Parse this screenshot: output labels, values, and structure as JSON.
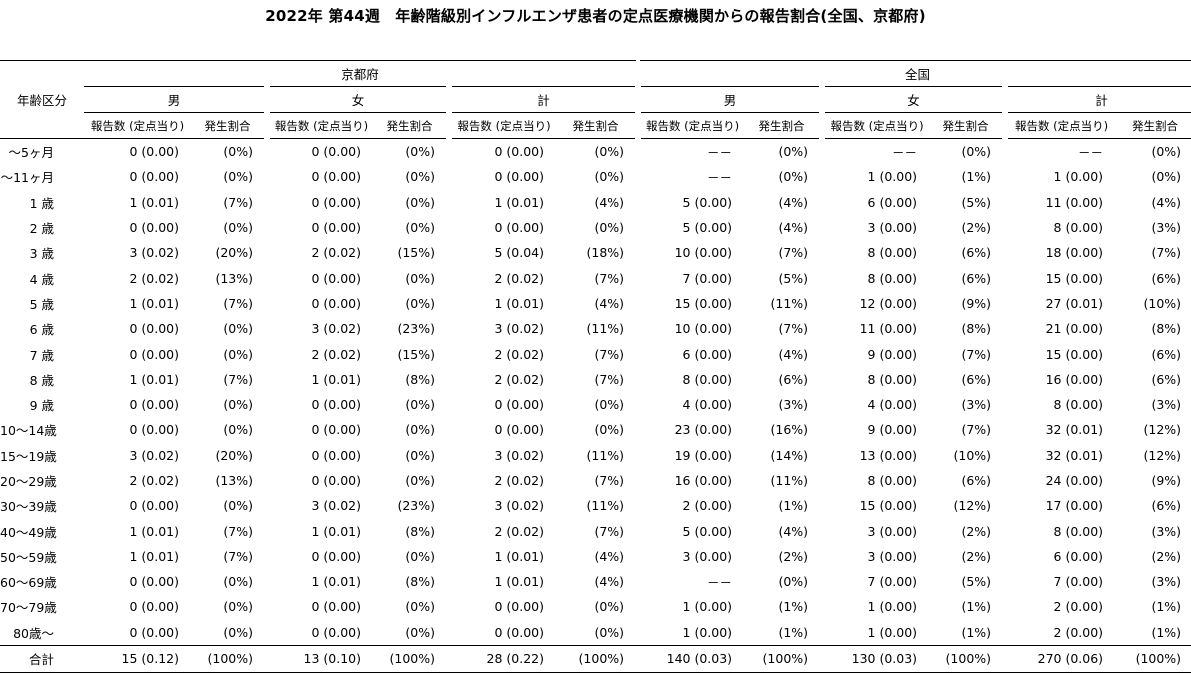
{
  "title": "2022年 第44週　年齢階級別インフルエンザ患者の定点医療機関からの報告割合(全国、京都府)",
  "header": {
    "age_group_label": "年齢区分",
    "region_kyoto": "京都府",
    "region_national": "全国",
    "sex_male": "男",
    "sex_female": "女",
    "sex_total": "計",
    "col_reports": "報告数 (定点当り)",
    "col_rate": "発生割合"
  },
  "rows": [
    {
      "age": "～5ヶ月",
      "k_m": "0 (0.00)",
      "k_m_p": "(0%)",
      "k_f": "0 (0.00)",
      "k_f_p": "(0%)",
      "k_t": "0 (0.00)",
      "k_t_p": "(0%)",
      "n_m": "－－",
      "n_m_p": "(0%)",
      "n_f": "－－",
      "n_f_p": "(0%)",
      "n_t": "－－",
      "n_t_p": "(0%)"
    },
    {
      "age": "～11ヶ月",
      "k_m": "0 (0.00)",
      "k_m_p": "(0%)",
      "k_f": "0 (0.00)",
      "k_f_p": "(0%)",
      "k_t": "0 (0.00)",
      "k_t_p": "(0%)",
      "n_m": "－－",
      "n_m_p": "(0%)",
      "n_f": "1 (0.00)",
      "n_f_p": "(1%)",
      "n_t": "1 (0.00)",
      "n_t_p": "(0%)"
    },
    {
      "age": "1 歳",
      "k_m": "1 (0.01)",
      "k_m_p": "(7%)",
      "k_f": "0 (0.00)",
      "k_f_p": "(0%)",
      "k_t": "1 (0.01)",
      "k_t_p": "(4%)",
      "n_m": "5 (0.00)",
      "n_m_p": "(4%)",
      "n_f": "6 (0.00)",
      "n_f_p": "(5%)",
      "n_t": "11 (0.00)",
      "n_t_p": "(4%)"
    },
    {
      "age": "2 歳",
      "k_m": "0 (0.00)",
      "k_m_p": "(0%)",
      "k_f": "0 (0.00)",
      "k_f_p": "(0%)",
      "k_t": "0 (0.00)",
      "k_t_p": "(0%)",
      "n_m": "5 (0.00)",
      "n_m_p": "(4%)",
      "n_f": "3 (0.00)",
      "n_f_p": "(2%)",
      "n_t": "8 (0.00)",
      "n_t_p": "(3%)"
    },
    {
      "age": "3 歳",
      "k_m": "3 (0.02)",
      "k_m_p": "(20%)",
      "k_f": "2 (0.02)",
      "k_f_p": "(15%)",
      "k_t": "5 (0.04)",
      "k_t_p": "(18%)",
      "n_m": "10 (0.00)",
      "n_m_p": "(7%)",
      "n_f": "8 (0.00)",
      "n_f_p": "(6%)",
      "n_t": "18 (0.00)",
      "n_t_p": "(7%)"
    },
    {
      "age": "4 歳",
      "k_m": "2 (0.02)",
      "k_m_p": "(13%)",
      "k_f": "0 (0.00)",
      "k_f_p": "(0%)",
      "k_t": "2 (0.02)",
      "k_t_p": "(7%)",
      "n_m": "7 (0.00)",
      "n_m_p": "(5%)",
      "n_f": "8 (0.00)",
      "n_f_p": "(6%)",
      "n_t": "15 (0.00)",
      "n_t_p": "(6%)"
    },
    {
      "age": "5 歳",
      "k_m": "1 (0.01)",
      "k_m_p": "(7%)",
      "k_f": "0 (0.00)",
      "k_f_p": "(0%)",
      "k_t": "1 (0.01)",
      "k_t_p": "(4%)",
      "n_m": "15 (0.00)",
      "n_m_p": "(11%)",
      "n_f": "12 (0.00)",
      "n_f_p": "(9%)",
      "n_t": "27 (0.01)",
      "n_t_p": "(10%)"
    },
    {
      "age": "6 歳",
      "k_m": "0 (0.00)",
      "k_m_p": "(0%)",
      "k_f": "3 (0.02)",
      "k_f_p": "(23%)",
      "k_t": "3 (0.02)",
      "k_t_p": "(11%)",
      "n_m": "10 (0.00)",
      "n_m_p": "(7%)",
      "n_f": "11 (0.00)",
      "n_f_p": "(8%)",
      "n_t": "21 (0.00)",
      "n_t_p": "(8%)"
    },
    {
      "age": "7 歳",
      "k_m": "0 (0.00)",
      "k_m_p": "(0%)",
      "k_f": "2 (0.02)",
      "k_f_p": "(15%)",
      "k_t": "2 (0.02)",
      "k_t_p": "(7%)",
      "n_m": "6 (0.00)",
      "n_m_p": "(4%)",
      "n_f": "9 (0.00)",
      "n_f_p": "(7%)",
      "n_t": "15 (0.00)",
      "n_t_p": "(6%)"
    },
    {
      "age": "8 歳",
      "k_m": "1 (0.01)",
      "k_m_p": "(7%)",
      "k_f": "1 (0.01)",
      "k_f_p": "(8%)",
      "k_t": "2 (0.02)",
      "k_t_p": "(7%)",
      "n_m": "8 (0.00)",
      "n_m_p": "(6%)",
      "n_f": "8 (0.00)",
      "n_f_p": "(6%)",
      "n_t": "16 (0.00)",
      "n_t_p": "(6%)"
    },
    {
      "age": "9 歳",
      "k_m": "0 (0.00)",
      "k_m_p": "(0%)",
      "k_f": "0 (0.00)",
      "k_f_p": "(0%)",
      "k_t": "0 (0.00)",
      "k_t_p": "(0%)",
      "n_m": "4 (0.00)",
      "n_m_p": "(3%)",
      "n_f": "4 (0.00)",
      "n_f_p": "(3%)",
      "n_t": "8 (0.00)",
      "n_t_p": "(3%)"
    },
    {
      "age": "10～14歳",
      "k_m": "0 (0.00)",
      "k_m_p": "(0%)",
      "k_f": "0 (0.00)",
      "k_f_p": "(0%)",
      "k_t": "0 (0.00)",
      "k_t_p": "(0%)",
      "n_m": "23 (0.00)",
      "n_m_p": "(16%)",
      "n_f": "9 (0.00)",
      "n_f_p": "(7%)",
      "n_t": "32 (0.01)",
      "n_t_p": "(12%)"
    },
    {
      "age": "15～19歳",
      "k_m": "3 (0.02)",
      "k_m_p": "(20%)",
      "k_f": "0 (0.00)",
      "k_f_p": "(0%)",
      "k_t": "3 (0.02)",
      "k_t_p": "(11%)",
      "n_m": "19 (0.00)",
      "n_m_p": "(14%)",
      "n_f": "13 (0.00)",
      "n_f_p": "(10%)",
      "n_t": "32 (0.01)",
      "n_t_p": "(12%)"
    },
    {
      "age": "20～29歳",
      "k_m": "2 (0.02)",
      "k_m_p": "(13%)",
      "k_f": "0 (0.00)",
      "k_f_p": "(0%)",
      "k_t": "2 (0.02)",
      "k_t_p": "(7%)",
      "n_m": "16 (0.00)",
      "n_m_p": "(11%)",
      "n_f": "8 (0.00)",
      "n_f_p": "(6%)",
      "n_t": "24 (0.00)",
      "n_t_p": "(9%)"
    },
    {
      "age": "30～39歳",
      "k_m": "0 (0.00)",
      "k_m_p": "(0%)",
      "k_f": "3 (0.02)",
      "k_f_p": "(23%)",
      "k_t": "3 (0.02)",
      "k_t_p": "(11%)",
      "n_m": "2 (0.00)",
      "n_m_p": "(1%)",
      "n_f": "15 (0.00)",
      "n_f_p": "(12%)",
      "n_t": "17 (0.00)",
      "n_t_p": "(6%)"
    },
    {
      "age": "40～49歳",
      "k_m": "1 (0.01)",
      "k_m_p": "(7%)",
      "k_f": "1 (0.01)",
      "k_f_p": "(8%)",
      "k_t": "2 (0.02)",
      "k_t_p": "(7%)",
      "n_m": "5 (0.00)",
      "n_m_p": "(4%)",
      "n_f": "3 (0.00)",
      "n_f_p": "(2%)",
      "n_t": "8 (0.00)",
      "n_t_p": "(3%)"
    },
    {
      "age": "50～59歳",
      "k_m": "1 (0.01)",
      "k_m_p": "(7%)",
      "k_f": "0 (0.00)",
      "k_f_p": "(0%)",
      "k_t": "1 (0.01)",
      "k_t_p": "(4%)",
      "n_m": "3 (0.00)",
      "n_m_p": "(2%)",
      "n_f": "3 (0.00)",
      "n_f_p": "(2%)",
      "n_t": "6 (0.00)",
      "n_t_p": "(2%)"
    },
    {
      "age": "60～69歳",
      "k_m": "0 (0.00)",
      "k_m_p": "(0%)",
      "k_f": "1 (0.01)",
      "k_f_p": "(8%)",
      "k_t": "1 (0.01)",
      "k_t_p": "(4%)",
      "n_m": "－－",
      "n_m_p": "(0%)",
      "n_f": "7 (0.00)",
      "n_f_p": "(5%)",
      "n_t": "7 (0.00)",
      "n_t_p": "(3%)"
    },
    {
      "age": "70～79歳",
      "k_m": "0 (0.00)",
      "k_m_p": "(0%)",
      "k_f": "0 (0.00)",
      "k_f_p": "(0%)",
      "k_t": "0 (0.00)",
      "k_t_p": "(0%)",
      "n_m": "1 (0.00)",
      "n_m_p": "(1%)",
      "n_f": "1 (0.00)",
      "n_f_p": "(1%)",
      "n_t": "2 (0.00)",
      "n_t_p": "(1%)"
    },
    {
      "age": "80歳～",
      "k_m": "0 (0.00)",
      "k_m_p": "(0%)",
      "k_f": "0 (0.00)",
      "k_f_p": "(0%)",
      "k_t": "0 (0.00)",
      "k_t_p": "(0%)",
      "n_m": "1 (0.00)",
      "n_m_p": "(1%)",
      "n_f": "1 (0.00)",
      "n_f_p": "(1%)",
      "n_t": "2 (0.00)",
      "n_t_p": "(1%)"
    }
  ],
  "total": {
    "age": "合計",
    "k_m": "15 (0.12)",
    "k_m_p": "(100%)",
    "k_f": "13 (0.10)",
    "k_f_p": "(100%)",
    "k_t": "28 (0.22)",
    "k_t_p": "(100%)",
    "n_m": "140 (0.03)",
    "n_m_p": "(100%)",
    "n_f": "130 (0.03)",
    "n_f_p": "(100%)",
    "n_t": "270 (0.06)",
    "n_t_p": "(100%)"
  }
}
